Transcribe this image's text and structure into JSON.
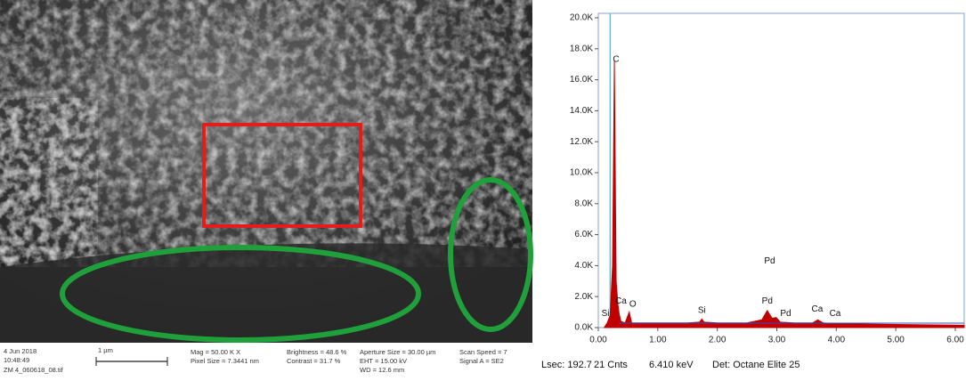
{
  "sem_image": {
    "info": [
      "4 Jun 2018",
      "10:48:49",
      "ZM 4_060618_08.tif"
    ],
    "scale_bar": "1 µm",
    "params": [
      "Mag = 50.00 K X",
      "Pixel Size = 7.3441 nm",
      "Brightness = 48.6 %",
      "Contrast = 31.7 %",
      "Aperture Size = 30.00 µm",
      "EHT = 15.00 kV",
      "WD = 12.6 mm",
      "Scan Speed = 7",
      "Signal A = SE2"
    ]
  },
  "chart_data": {
    "type": "area",
    "x": [
      0.1,
      0.15,
      0.2,
      0.24,
      0.27,
      0.3,
      0.33,
      0.35,
      0.38,
      0.45,
      0.52,
      0.56,
      0.65,
      1.0,
      1.5,
      1.7,
      1.74,
      1.78,
      2.0,
      2.5,
      2.75,
      2.84,
      2.92,
      2.99,
      3.06,
      3.3,
      3.6,
      3.69,
      3.78,
      4.0,
      5.0,
      6.15
    ],
    "series": [
      {
        "color": "#c00000",
        "values": [
          0,
          300,
          800,
          4000,
          17200,
          3000,
          1500,
          900,
          400,
          300,
          1000,
          300,
          300,
          300,
          300,
          350,
          550,
          350,
          300,
          300,
          500,
          1100,
          600,
          650,
          350,
          300,
          300,
          500,
          300,
          250,
          200,
          150
        ]
      }
    ],
    "xlim": [
      0,
      6.15
    ],
    "ylim": [
      0,
      20000
    ],
    "xticks": [
      {
        "value": 0,
        "label": "0.00"
      },
      {
        "value": 1,
        "label": "1.00"
      },
      {
        "value": 2,
        "label": "2.00"
      },
      {
        "value": 3,
        "label": "3.00"
      },
      {
        "value": 4,
        "label": "4.00"
      },
      {
        "value": 5,
        "label": "5.00"
      },
      {
        "value": 6,
        "label": "6.00"
      }
    ],
    "yticks": [
      {
        "value": 0,
        "label": "0.0K"
      },
      {
        "value": 2000,
        "label": "2.0K"
      },
      {
        "value": 4000,
        "label": "4.0K"
      },
      {
        "value": 6000,
        "label": "6.0K"
      },
      {
        "value": 8000,
        "label": "8.0K"
      },
      {
        "value": 10000,
        "label": "10.0K"
      },
      {
        "value": 12000,
        "label": "12.0K"
      },
      {
        "value": 14000,
        "label": "14.0K"
      },
      {
        "value": 16000,
        "label": "16.0K"
      },
      {
        "value": 18000,
        "label": "18.0K"
      },
      {
        "value": 20000,
        "label": "20.0K"
      }
    ],
    "annotations": [
      {
        "text": "C",
        "x": 0.3,
        "y": 17300
      },
      {
        "text": "Si",
        "x": 0.12,
        "y": 900
      },
      {
        "text": "Ca",
        "x": 0.38,
        "y": 1700
      },
      {
        "text": "O",
        "x": 0.58,
        "y": 1500
      },
      {
        "text": "Si",
        "x": 1.74,
        "y": 1100
      },
      {
        "text": "Pd",
        "x": 2.88,
        "y": 4300
      },
      {
        "text": "Pd",
        "x": 2.84,
        "y": 1700
      },
      {
        "text": "Pd",
        "x": 3.15,
        "y": 900
      },
      {
        "text": "Ca",
        "x": 3.68,
        "y": 1200
      },
      {
        "text": "Ca",
        "x": 3.98,
        "y": 900
      }
    ],
    "footer": [
      "Lsec: 192.7",
      "21 Cnts",
      "6.410 keV",
      "Det: Octane Elite 25"
    ]
  }
}
